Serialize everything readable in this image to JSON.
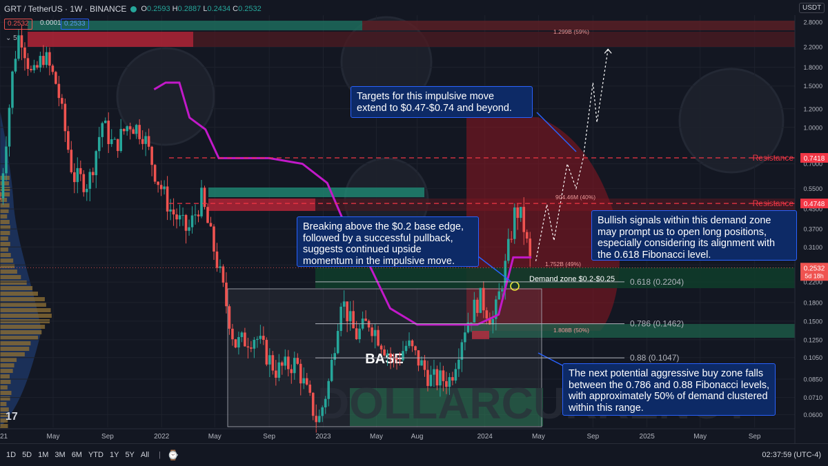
{
  "header": {
    "symbol": "GRT / TetherUS · 1W · BINANCE",
    "open": "0.2593",
    "high": "0.2887",
    "low": "0.2434",
    "close": "0.2532",
    "bid": "0.2532",
    "spread": "0.0001",
    "ask": "0.2533",
    "indicator_count": "5",
    "currency": "USDT"
  },
  "bottom_bar": {
    "timeframes": [
      "1D",
      "5D",
      "1M",
      "3M",
      "6M",
      "YTD",
      "1Y",
      "5Y",
      "All"
    ],
    "clock": "02:37:59 (UTC-4)"
  },
  "annotations": {
    "targets": "Targets for this impulsive move extend to $0.47-$0.74 and beyond.",
    "breaking": "Breaking above the $0.2 base edge, followed by a successful pullback, suggests continued upside momentum in the impulsive move.",
    "bullish": "Bullish signals within this demand zone may prompt us to open long positions, especially considering its alignment with the 0.618 Fibonacci level.",
    "buy_zone": "The next potential aggressive buy zone falls between the 0.786 and 0.88 Fibonacci levels, with approximately 50% of demand clustered within this range."
  },
  "chart_data": {
    "type": "candlestick",
    "pair": "GRT/USDT",
    "interval": "1W",
    "y_scale": "log",
    "ylim": [
      0.053,
      3.0
    ],
    "y_ticks": [
      "2.8000",
      "2.2000",
      "1.8000",
      "1.5000",
      "1.2000",
      "1.0000",
      "0.7000",
      "0.5500",
      "0.4500",
      "0.3700",
      "0.3100",
      "0.2600",
      "0.2200",
      "0.1800",
      "0.1500",
      "0.1250",
      "0.1050",
      "0.0850",
      "0.0710",
      "0.0600"
    ],
    "y_tick_values": [
      2.8,
      2.2,
      1.8,
      1.5,
      1.2,
      1.0,
      0.7,
      0.55,
      0.45,
      0.37,
      0.31,
      0.26,
      0.22,
      0.18,
      0.15,
      0.125,
      0.105,
      0.085,
      0.071,
      0.06
    ],
    "x_ticks": [
      {
        "label": "2021",
        "date": "2021-01-01"
      },
      {
        "label": "May",
        "date": "2021-05-01"
      },
      {
        "label": "Sep",
        "date": "2021-09-01"
      },
      {
        "label": "2022",
        "date": "2022-01-01"
      },
      {
        "label": "May",
        "date": "2022-05-01"
      },
      {
        "label": "Sep",
        "date": "2022-09-01"
      },
      {
        "label": "2023",
        "date": "2023-01-01"
      },
      {
        "label": "May",
        "date": "2023-05-01"
      },
      {
        "label": "Aug",
        "date": "2023-08-01"
      },
      {
        "label": "2024",
        "date": "2024-01-01"
      },
      {
        "label": "May",
        "date": "2024-05-01"
      },
      {
        "label": "Sep",
        "date": "2024-09-01"
      },
      {
        "label": "2025",
        "date": "2025-01-01"
      },
      {
        "label": "May",
        "date": "2025-05-01"
      },
      {
        "label": "Sep",
        "date": "2025-09-01"
      }
    ],
    "price_path": [
      [
        "2021-01-01",
        0.5
      ],
      [
        "2021-02-01",
        1.9
      ],
      [
        "2021-02-15",
        2.6
      ],
      [
        "2021-03-15",
        1.6
      ],
      [
        "2021-04-10",
        2.05
      ],
      [
        "2021-05-10",
        1.5
      ],
      [
        "2021-06-15",
        0.62
      ],
      [
        "2021-07-20",
        0.58
      ],
      [
        "2021-08-20",
        1.05
      ],
      [
        "2021-09-15",
        0.82
      ],
      [
        "2021-10-20",
        1.05
      ],
      [
        "2021-11-20",
        0.95
      ],
      [
        "2021-12-20",
        0.62
      ],
      [
        "2022-01-20",
        0.45
      ],
      [
        "2022-03-01",
        0.36
      ],
      [
        "2022-04-01",
        0.5
      ],
      [
        "2022-05-10",
        0.25
      ],
      [
        "2022-06-15",
        0.12
      ],
      [
        "2022-08-01",
        0.13
      ],
      [
        "2022-09-15",
        0.093
      ],
      [
        "2022-11-01",
        0.1
      ],
      [
        "2022-12-20",
        0.055
      ],
      [
        "2023-01-15",
        0.085
      ],
      [
        "2023-02-10",
        0.19
      ],
      [
        "2023-03-15",
        0.13
      ],
      [
        "2023-04-15",
        0.15
      ],
      [
        "2023-06-10",
        0.1
      ],
      [
        "2023-07-10",
        0.12
      ],
      [
        "2023-09-01",
        0.085
      ],
      [
        "2023-10-15",
        0.085
      ],
      [
        "2023-11-15",
        0.14
      ],
      [
        "2023-12-20",
        0.19
      ],
      [
        "2024-01-20",
        0.15
      ],
      [
        "2024-02-15",
        0.25
      ],
      [
        "2024-03-10",
        0.45
      ],
      [
        "2024-03-25",
        0.41
      ],
      [
        "2024-04-15",
        0.2532
      ]
    ],
    "overlay_line": [
      [
        "2021-12-15",
        1.45
      ],
      [
        "2022-01-10",
        1.55
      ],
      [
        "2022-02-10",
        1.55
      ],
      [
        "2022-03-05",
        1.1
      ],
      [
        "2022-04-10",
        0.98
      ],
      [
        "2022-05-10",
        0.74
      ],
      [
        "2022-09-01",
        0.74
      ],
      [
        "2022-11-15",
        0.7
      ],
      [
        "2023-01-10",
        0.58
      ],
      [
        "2023-03-01",
        0.35
      ],
      [
        "2023-04-15",
        0.26
      ],
      [
        "2023-06-01",
        0.17
      ],
      [
        "2023-08-01",
        0.145
      ],
      [
        "2023-12-15",
        0.145
      ],
      [
        "2024-02-01",
        0.16
      ],
      [
        "2024-03-05",
        0.28
      ],
      [
        "2024-04-15",
        0.28
      ]
    ],
    "levels": [
      {
        "label": "Resistance",
        "price": "0.7418",
        "value": 0.7418
      },
      {
        "label": "Resistance",
        "price": "0.4748",
        "value": 0.4748
      }
    ],
    "current_price": {
      "price": "0.2532",
      "countdown": "5d 18h",
      "value": 0.2532
    },
    "fibonacci": [
      {
        "label": "0.618 (0.2204)",
        "value": 0.2204
      },
      {
        "label": "0.786 (0.1462)",
        "value": 0.1462
      },
      {
        "label": "0.88 (0.1047)",
        "value": 0.1047
      }
    ],
    "zones": [
      {
        "label": "Demand zone $0.2-$0.25",
        "low": 0.2,
        "high": 0.25
      },
      {
        "label": "BASE",
        "low": 0.055,
        "high": 0.2
      }
    ],
    "measure_labels": [
      "1.299B (59%)",
      "904.46M (40%)",
      "1.752B (49%)",
      "1.808B (50%)"
    ],
    "projection": [
      [
        "2024-04-25",
        0.27
      ],
      [
        "2024-05-20",
        0.47
      ],
      [
        "2024-06-05",
        0.33
      ],
      [
        "2024-07-05",
        0.7
      ],
      [
        "2024-07-25",
        0.55
      ],
      [
        "2024-08-10",
        0.74
      ],
      [
        "2024-09-01",
        1.55
      ],
      [
        "2024-09-10",
        1.05
      ],
      [
        "2024-10-05",
        2.15
      ]
    ]
  },
  "colors": {
    "background": "#131722",
    "bull": "#26a69a",
    "bear": "#ef5350",
    "overlay": "#c219c9",
    "resistance": "#f23645",
    "fib_line": "#b2b5be",
    "annotation_bg": "#0d2a66",
    "annotation_border": "#2962ff"
  }
}
